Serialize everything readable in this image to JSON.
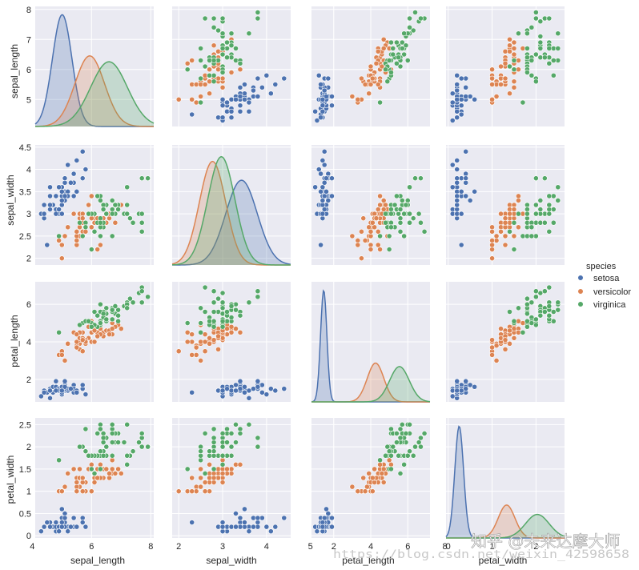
{
  "chart_data": {
    "type": "pairplot",
    "variables": [
      "sepal_length",
      "sepal_width",
      "petal_length",
      "petal_width"
    ],
    "ranges": {
      "sepal_length": [
        4.1,
        8.1
      ],
      "sepal_width": [
        1.85,
        4.55
      ],
      "petal_length": [
        0.8,
        7.2
      ],
      "petal_width": [
        -0.05,
        2.65
      ]
    },
    "ticks": {
      "sepal_length": [
        5,
        6,
        7,
        8
      ],
      "sepal_length_x": [
        4,
        6,
        8
      ],
      "sepal_width": [
        2.0,
        2.5,
        3.0,
        3.5,
        4.0,
        4.5
      ],
      "sepal_width_x": [
        2,
        3,
        4,
        5
      ],
      "petal_length": [
        2,
        4,
        6
      ],
      "petal_length_x": [
        2,
        4,
        6,
        8
      ],
      "petal_width": [
        0.0,
        0.5,
        1.0,
        1.5,
        2.0,
        2.5
      ],
      "petal_width_x": [
        0,
        1,
        2
      ]
    },
    "diag_kde": {
      "sepal_length": [
        {
          "mean": 5.01,
          "sd": 0.33,
          "peak": 0.95
        },
        {
          "mean": 5.94,
          "sd": 0.5,
          "peak": 0.6
        },
        {
          "mean": 6.59,
          "sd": 0.62,
          "peak": 0.55
        }
      ],
      "sepal_width": [
        {
          "mean": 3.43,
          "sd": 0.36,
          "peak": 0.72
        },
        {
          "mean": 2.77,
          "sd": 0.3,
          "peak": 0.88
        },
        {
          "mean": 2.97,
          "sd": 0.31,
          "peak": 0.92
        }
      ],
      "petal_length": [
        {
          "mean": 1.46,
          "sd": 0.17,
          "peak": 0.95
        },
        {
          "mean": 4.26,
          "sd": 0.45,
          "peak": 0.33
        },
        {
          "mean": 5.55,
          "sd": 0.53,
          "peak": 0.3
        }
      ],
      "petal_width": [
        {
          "mean": 0.25,
          "sd": 0.1,
          "peak": 0.95
        },
        {
          "mean": 1.33,
          "sd": 0.19,
          "peak": 0.28
        },
        {
          "mean": 2.03,
          "sd": 0.27,
          "peak": 0.2
        }
      ]
    },
    "series": [
      {
        "name": "setosa",
        "color": "#4c72b0",
        "points": [
          [
            5.1,
            3.5,
            1.4,
            0.2
          ],
          [
            4.9,
            3.0,
            1.4,
            0.2
          ],
          [
            4.7,
            3.2,
            1.3,
            0.2
          ],
          [
            4.6,
            3.1,
            1.5,
            0.2
          ],
          [
            5.0,
            3.6,
            1.4,
            0.2
          ],
          [
            5.4,
            3.9,
            1.7,
            0.4
          ],
          [
            4.6,
            3.4,
            1.4,
            0.3
          ],
          [
            5.0,
            3.4,
            1.5,
            0.2
          ],
          [
            4.4,
            2.9,
            1.4,
            0.2
          ],
          [
            4.9,
            3.1,
            1.5,
            0.1
          ],
          [
            5.4,
            3.7,
            1.5,
            0.2
          ],
          [
            4.8,
            3.4,
            1.6,
            0.2
          ],
          [
            4.8,
            3.0,
            1.4,
            0.1
          ],
          [
            4.3,
            3.0,
            1.1,
            0.1
          ],
          [
            5.8,
            4.0,
            1.2,
            0.2
          ],
          [
            5.7,
            4.4,
            1.5,
            0.4
          ],
          [
            5.4,
            3.9,
            1.3,
            0.4
          ],
          [
            5.1,
            3.5,
            1.4,
            0.3
          ],
          [
            5.7,
            3.8,
            1.7,
            0.3
          ],
          [
            5.1,
            3.8,
            1.5,
            0.3
          ],
          [
            5.4,
            3.4,
            1.7,
            0.2
          ],
          [
            5.1,
            3.7,
            1.5,
            0.4
          ],
          [
            4.6,
            3.6,
            1.0,
            0.2
          ],
          [
            5.1,
            3.3,
            1.7,
            0.5
          ],
          [
            4.8,
            3.4,
            1.9,
            0.2
          ],
          [
            5.0,
            3.0,
            1.6,
            0.2
          ],
          [
            5.0,
            3.4,
            1.6,
            0.4
          ],
          [
            5.2,
            3.5,
            1.5,
            0.2
          ],
          [
            5.2,
            3.4,
            1.4,
            0.2
          ],
          [
            4.7,
            3.2,
            1.6,
            0.2
          ],
          [
            4.8,
            3.1,
            1.6,
            0.2
          ],
          [
            5.4,
            3.4,
            1.5,
            0.4
          ],
          [
            5.2,
            4.1,
            1.5,
            0.1
          ],
          [
            5.5,
            4.2,
            1.4,
            0.2
          ],
          [
            4.9,
            3.1,
            1.5,
            0.2
          ],
          [
            5.0,
            3.2,
            1.2,
            0.2
          ],
          [
            5.5,
            3.5,
            1.3,
            0.2
          ],
          [
            4.9,
            3.6,
            1.4,
            0.1
          ],
          [
            4.4,
            3.0,
            1.3,
            0.2
          ],
          [
            5.1,
            3.4,
            1.5,
            0.2
          ],
          [
            5.0,
            3.5,
            1.3,
            0.3
          ],
          [
            4.5,
            2.3,
            1.3,
            0.3
          ],
          [
            4.4,
            3.2,
            1.3,
            0.2
          ],
          [
            5.0,
            3.5,
            1.6,
            0.6
          ],
          [
            5.1,
            3.8,
            1.9,
            0.4
          ],
          [
            4.8,
            3.0,
            1.4,
            0.3
          ],
          [
            5.1,
            3.8,
            1.6,
            0.2
          ],
          [
            4.6,
            3.2,
            1.4,
            0.2
          ],
          [
            5.3,
            3.7,
            1.5,
            0.2
          ],
          [
            5.0,
            3.3,
            1.4,
            0.2
          ]
        ]
      },
      {
        "name": "versicolor",
        "color": "#dd8452",
        "points": [
          [
            7.0,
            3.2,
            4.7,
            1.4
          ],
          [
            6.4,
            3.2,
            4.5,
            1.5
          ],
          [
            6.9,
            3.1,
            4.9,
            1.5
          ],
          [
            5.5,
            2.3,
            4.0,
            1.3
          ],
          [
            6.5,
            2.8,
            4.6,
            1.5
          ],
          [
            5.7,
            2.8,
            4.5,
            1.3
          ],
          [
            6.3,
            3.3,
            4.7,
            1.6
          ],
          [
            4.9,
            2.4,
            3.3,
            1.0
          ],
          [
            6.6,
            2.9,
            4.6,
            1.3
          ],
          [
            5.2,
            2.7,
            3.9,
            1.4
          ],
          [
            5.0,
            2.0,
            3.5,
            1.0
          ],
          [
            5.9,
            3.0,
            4.2,
            1.5
          ],
          [
            6.0,
            2.2,
            4.0,
            1.0
          ],
          [
            6.1,
            2.9,
            4.7,
            1.4
          ],
          [
            5.6,
            2.9,
            3.6,
            1.3
          ],
          [
            6.7,
            3.1,
            4.4,
            1.4
          ],
          [
            5.6,
            3.0,
            4.5,
            1.5
          ],
          [
            5.8,
            2.7,
            4.1,
            1.0
          ],
          [
            6.2,
            2.2,
            4.5,
            1.5
          ],
          [
            5.6,
            2.5,
            3.9,
            1.1
          ],
          [
            5.9,
            3.2,
            4.8,
            1.8
          ],
          [
            6.1,
            2.8,
            4.0,
            1.3
          ],
          [
            6.3,
            2.5,
            4.9,
            1.5
          ],
          [
            6.1,
            2.8,
            4.7,
            1.2
          ],
          [
            6.4,
            2.9,
            4.3,
            1.3
          ],
          [
            6.6,
            3.0,
            4.4,
            1.4
          ],
          [
            6.8,
            2.8,
            4.8,
            1.4
          ],
          [
            6.7,
            3.0,
            5.0,
            1.7
          ],
          [
            6.0,
            2.9,
            4.5,
            1.5
          ],
          [
            5.7,
            2.6,
            3.5,
            1.0
          ],
          [
            5.5,
            2.4,
            3.8,
            1.1
          ],
          [
            5.5,
            2.4,
            3.7,
            1.0
          ],
          [
            5.8,
            2.7,
            3.9,
            1.2
          ],
          [
            6.0,
            2.7,
            5.1,
            1.6
          ],
          [
            5.4,
            3.0,
            4.5,
            1.5
          ],
          [
            6.0,
            3.4,
            4.5,
            1.6
          ],
          [
            6.7,
            3.1,
            4.7,
            1.5
          ],
          [
            6.3,
            2.3,
            4.4,
            1.3
          ],
          [
            5.6,
            3.0,
            4.1,
            1.3
          ],
          [
            5.5,
            2.5,
            4.0,
            1.3
          ],
          [
            5.5,
            2.6,
            4.4,
            1.2
          ],
          [
            6.1,
            3.0,
            4.6,
            1.4
          ],
          [
            5.8,
            2.6,
            4.0,
            1.2
          ],
          [
            5.0,
            2.3,
            3.3,
            1.0
          ],
          [
            5.6,
            2.7,
            4.2,
            1.3
          ],
          [
            5.7,
            3.0,
            4.2,
            1.2
          ],
          [
            5.7,
            2.9,
            4.2,
            1.3
          ],
          [
            6.2,
            2.9,
            4.3,
            1.3
          ],
          [
            5.1,
            2.5,
            3.0,
            1.1
          ],
          [
            5.7,
            2.8,
            4.1,
            1.3
          ]
        ]
      },
      {
        "name": "virginica",
        "color": "#55a868",
        "points": [
          [
            6.3,
            3.3,
            6.0,
            2.5
          ],
          [
            5.8,
            2.7,
            5.1,
            1.9
          ],
          [
            7.1,
            3.0,
            5.9,
            2.1
          ],
          [
            6.3,
            2.9,
            5.6,
            1.8
          ],
          [
            6.5,
            3.0,
            5.8,
            2.2
          ],
          [
            7.6,
            3.0,
            6.6,
            2.1
          ],
          [
            4.9,
            2.5,
            4.5,
            1.7
          ],
          [
            7.3,
            2.9,
            6.3,
            1.8
          ],
          [
            6.7,
            2.5,
            5.8,
            1.8
          ],
          [
            7.2,
            3.6,
            6.1,
            2.5
          ],
          [
            6.5,
            3.2,
            5.1,
            2.0
          ],
          [
            6.4,
            2.7,
            5.3,
            1.9
          ],
          [
            6.8,
            3.0,
            5.5,
            2.1
          ],
          [
            5.7,
            2.5,
            5.0,
            2.0
          ],
          [
            5.8,
            2.8,
            5.1,
            2.4
          ],
          [
            6.4,
            3.2,
            5.3,
            2.3
          ],
          [
            6.5,
            3.0,
            5.5,
            1.8
          ],
          [
            7.7,
            3.8,
            6.7,
            2.2
          ],
          [
            7.7,
            2.6,
            6.9,
            2.3
          ],
          [
            6.0,
            2.2,
            5.0,
            1.5
          ],
          [
            6.9,
            3.2,
            5.7,
            2.3
          ],
          [
            5.6,
            2.8,
            4.9,
            2.0
          ],
          [
            7.7,
            2.8,
            6.7,
            2.0
          ],
          [
            6.3,
            2.7,
            4.9,
            1.8
          ],
          [
            6.7,
            3.3,
            5.7,
            2.1
          ],
          [
            7.2,
            3.2,
            6.0,
            1.8
          ],
          [
            6.2,
            2.8,
            4.8,
            1.8
          ],
          [
            6.1,
            3.0,
            4.9,
            1.8
          ],
          [
            6.4,
            2.8,
            5.6,
            2.1
          ],
          [
            7.2,
            3.0,
            5.8,
            1.6
          ],
          [
            7.4,
            2.8,
            6.1,
            1.9
          ],
          [
            7.9,
            3.8,
            6.4,
            2.0
          ],
          [
            6.4,
            2.8,
            5.6,
            2.2
          ],
          [
            6.3,
            2.8,
            5.1,
            1.5
          ],
          [
            6.1,
            2.6,
            5.6,
            1.4
          ],
          [
            7.7,
            3.0,
            6.1,
            2.3
          ],
          [
            6.3,
            3.4,
            5.6,
            2.4
          ],
          [
            6.4,
            3.1,
            5.5,
            1.8
          ],
          [
            6.0,
            3.0,
            4.8,
            1.8
          ],
          [
            6.9,
            3.1,
            5.4,
            2.1
          ],
          [
            6.7,
            3.1,
            5.6,
            2.4
          ],
          [
            6.9,
            3.1,
            5.1,
            2.3
          ],
          [
            5.8,
            2.7,
            5.1,
            1.9
          ],
          [
            6.8,
            3.2,
            5.9,
            2.3
          ],
          [
            6.7,
            3.3,
            5.7,
            2.5
          ],
          [
            6.7,
            3.0,
            5.2,
            2.3
          ],
          [
            6.3,
            2.5,
            5.0,
            1.9
          ],
          [
            6.5,
            3.0,
            5.2,
            2.0
          ],
          [
            6.2,
            3.4,
            5.4,
            2.3
          ],
          [
            5.9,
            3.0,
            5.1,
            1.8
          ]
        ]
      }
    ],
    "legend": {
      "title": "species",
      "position": "right",
      "entries": [
        "setosa",
        "versicolor",
        "virginica"
      ]
    }
  },
  "axis_labels": {
    "sepal_length": "sepal_length",
    "sepal_width": "sepal_width",
    "petal_length": "petal_length",
    "petal_width": "petal_width"
  },
  "legend_title": "species",
  "legend_items": [
    "setosa",
    "versicolor",
    "virginica"
  ],
  "watermark": {
    "logo": "知乎 @未来达摩大师",
    "url": "https://blog.csdn.net/weixin_42598658"
  }
}
